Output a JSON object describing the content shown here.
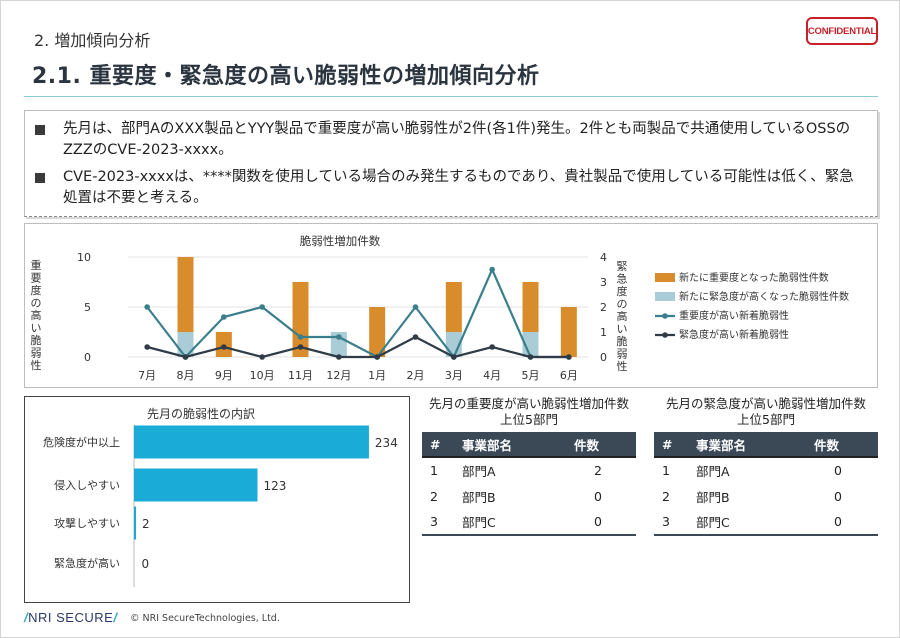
{
  "header": {
    "section_title": "2. 増加傾向分析",
    "main_title": "2.1. 重要度・緊急度の高い脆弱性の増加傾向分析",
    "confidential_label": "CONFIDENTIAL",
    "rule_color": "#8ec8d6"
  },
  "summary": {
    "bullets": [
      "先月は、部門AのXXX製品とYYY製品で重要度が高い脆弱性が2件(各1件)発生。2件とも両製品で共通使用しているOSSのZZZのCVE-2023-xxxx。",
      "CVE-2023-xxxxは、****関数を使用している場合のみ発生するものであり、貴社製品で使用している可能性は低く、緊急処置は不要と考える。"
    ]
  },
  "trend_chart_labels": {
    "left_axis_label": "重要度の高い脆弱性",
    "right_axis_label": "緊急度の高い脆弱性"
  },
  "chart_data": [
    {
      "type": "bar+line",
      "title": "脆弱性増加件数",
      "categories": [
        "7月",
        "8月",
        "9月",
        "10月",
        "11月",
        "12月",
        "1月",
        "2月",
        "3月",
        "4月",
        "5月",
        "6月"
      ],
      "ylim_left": [
        0,
        10
      ],
      "yticks_left": [
        0,
        5,
        10
      ],
      "ylim_right": [
        0,
        4
      ],
      "yticks_right": [
        0,
        1,
        2,
        3,
        4
      ],
      "ylabel_left": "重要度の高い脆弱性",
      "ylabel_right": "緊急度の高い脆弱性",
      "grid": true,
      "legend_position": "right",
      "series": [
        {
          "name": "新たに重要度となった脆弱性件数",
          "kind": "bar",
          "axis": "left",
          "color": "#d98c2b",
          "values": [
            0,
            7.5,
            2.5,
            0,
            7.5,
            0,
            5,
            0,
            5,
            0,
            5,
            5
          ]
        },
        {
          "name": "新たに緊急度が高くなった脆弱性件数",
          "kind": "bar",
          "axis": "left",
          "color": "#a9ccd6",
          "values": [
            0,
            2.5,
            0,
            0,
            0,
            2.5,
            0,
            0,
            2.5,
            0,
            2.5,
            0
          ]
        },
        {
          "name": "重要度が高い新着脆弱性",
          "kind": "line",
          "axis": "right",
          "color": "#3a7f8c",
          "values": [
            2,
            0,
            1.6,
            2,
            0.8,
            0.8,
            0,
            2,
            0,
            3.5,
            0,
            0
          ]
        },
        {
          "name": "緊急度が高い新着脆弱性",
          "kind": "line",
          "axis": "right",
          "color": "#2f3b47",
          "values": [
            0.4,
            0,
            0.4,
            0,
            0.4,
            0,
            0,
            0.8,
            0,
            0.4,
            0,
            0
          ]
        }
      ]
    },
    {
      "type": "bar",
      "orientation": "horizontal",
      "title": "先月の脆弱性の内訳",
      "categories": [
        "危険度が中以上",
        "侵入しやすい",
        "攻撃しやすい",
        "緊急度が高い"
      ],
      "values": [
        234,
        123,
        2,
        0
      ],
      "xlim": [
        0,
        250
      ],
      "color": "#1aabd6"
    }
  ],
  "tables": [
    {
      "title_line1": "先月の重要度が高い脆弱性増加件数",
      "title_line2": "上位5部門",
      "headers": [
        "#",
        "事業部名",
        "件数"
      ],
      "rows": [
        [
          "1",
          "部門A",
          "2"
        ],
        [
          "2",
          "部門B",
          "0"
        ],
        [
          "3",
          "部門C",
          "0"
        ]
      ]
    },
    {
      "title_line1": "先月の緊急度が高い脆弱性増加件数",
      "title_line2": "上位5部門",
      "headers": [
        "#",
        "事業部名",
        "件数"
      ],
      "rows": [
        [
          "1",
          "部門A",
          "0"
        ],
        [
          "2",
          "部門B",
          "0"
        ],
        [
          "3",
          "部門C",
          "0"
        ]
      ]
    }
  ],
  "footer": {
    "logo_text": "NRI SECURE",
    "copyright": "© NRI SecureTechnologies, Ltd."
  }
}
